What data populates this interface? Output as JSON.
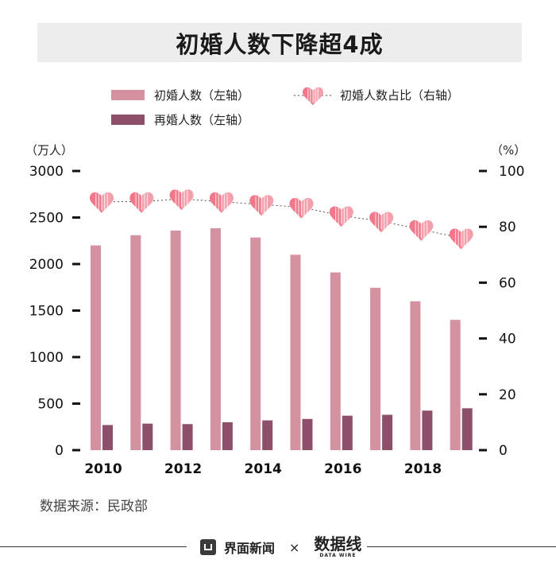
{
  "title": "初婚人数下降超4成",
  "source": "数据来源：民政部",
  "footer": {
    "brand": "界面新闻",
    "separator": "×",
    "partner": "数据线",
    "partner_sub": "DATA WIRE"
  },
  "colors": {
    "first_marriage": "#d4919f",
    "remarriage": "#8e4f6b",
    "heart": "#f0788a",
    "heart_light": "#f7c1c9",
    "axis": "#111111"
  },
  "chart_data": {
    "type": "bar",
    "x": [
      2010,
      2011,
      2012,
      2013,
      2014,
      2015,
      2016,
      2017,
      2018,
      2019
    ],
    "x_tick_labels": [
      "2010",
      "2012",
      "2014",
      "2016",
      "2018"
    ],
    "series": [
      {
        "name": "初婚人数（左轴）",
        "type": "bar",
        "axis": "left",
        "values": [
          2200,
          2310,
          2360,
          2385,
          2285,
          2100,
          1910,
          1745,
          1600,
          1400
        ]
      },
      {
        "name": "再婚人数（左轴）",
        "type": "bar",
        "axis": "left",
        "values": [
          270,
          285,
          280,
          300,
          320,
          335,
          370,
          380,
          425,
          450
        ]
      },
      {
        "name": "初婚人数占比（右轴）",
        "type": "line",
        "axis": "right",
        "marker": "heart",
        "values": [
          89,
          89,
          90,
          89,
          88,
          87,
          84,
          82,
          79,
          76
        ]
      }
    ],
    "left_axis": {
      "label": "（万人）",
      "ylim": [
        0,
        3000
      ],
      "ticks": [
        "0",
        "500",
        "1000",
        "1500",
        "2000",
        "2500",
        "3000"
      ]
    },
    "right_axis": {
      "label": "（%）",
      "ylim": [
        0,
        100
      ],
      "ticks": [
        "0",
        "20",
        "40",
        "60",
        "80",
        "100"
      ]
    },
    "legend_position": "top"
  }
}
